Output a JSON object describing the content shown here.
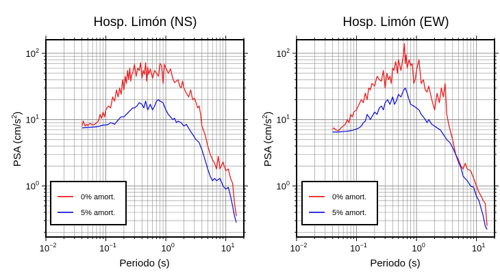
{
  "chart_data": [
    {
      "type": "line",
      "title": "Hosp. Limón (NS)",
      "xlabel": "Periodo (s)",
      "ylabel_main": "PSA (cm/s",
      "ylabel_sup": "2",
      "ylabel_close": ")",
      "xscale": "log",
      "yscale": "log",
      "xlim": [
        0.01,
        20
      ],
      "ylim": [
        0.17,
        160
      ],
      "grid": true,
      "legend_position": "bottom-left",
      "x_tick_labels": [
        {
          "value": 0.01,
          "base": "10",
          "exp": "−2"
        },
        {
          "value": 0.1,
          "base": "10",
          "exp": "−1"
        },
        {
          "value": 1,
          "base": "10",
          "exp": "0"
        },
        {
          "value": 10,
          "base": "10",
          "exp": "1"
        }
      ],
      "y_tick_labels": [
        {
          "value": 1,
          "base": "10",
          "exp": "0"
        },
        {
          "value": 10,
          "base": "10",
          "exp": "1"
        },
        {
          "value": 100,
          "base": "10",
          "exp": "2"
        }
      ],
      "series": [
        {
          "name": "0% amort.",
          "color": "#ee1c1c",
          "x": [
            0.04,
            0.042,
            0.045,
            0.048,
            0.05,
            0.055,
            0.06,
            0.065,
            0.07,
            0.075,
            0.08,
            0.085,
            0.09,
            0.095,
            0.1,
            0.11,
            0.12,
            0.13,
            0.14,
            0.15,
            0.16,
            0.17,
            0.18,
            0.19,
            0.2,
            0.21,
            0.22,
            0.23,
            0.24,
            0.25,
            0.26,
            0.27,
            0.28,
            0.3,
            0.32,
            0.34,
            0.36,
            0.38,
            0.4,
            0.42,
            0.44,
            0.46,
            0.48,
            0.5,
            0.52,
            0.55,
            0.6,
            0.65,
            0.7,
            0.75,
            0.8,
            0.85,
            0.9,
            0.95,
            1.0,
            1.05,
            1.1,
            1.2,
            1.3,
            1.4,
            1.5,
            1.6,
            1.7,
            1.8,
            1.9,
            2.0,
            2.2,
            2.4,
            2.6,
            2.8,
            3.0,
            3.2,
            3.4,
            3.6,
            3.8,
            4.0,
            4.5,
            5.0,
            5.5,
            6.0,
            6.5,
            7.0,
            7.5,
            8.0,
            9.0,
            10,
            11,
            12,
            13,
            14,
            15
          ],
          "y": [
            8,
            9.5,
            8,
            8.5,
            8.2,
            8.8,
            8.3,
            8.5,
            9,
            9.5,
            12,
            10.5,
            13,
            11,
            14,
            16,
            15,
            22,
            19,
            28,
            22,
            30,
            24,
            40,
            28,
            45,
            35,
            55,
            40,
            60,
            38,
            48,
            50,
            68,
            45,
            60,
            55,
            72,
            42,
            55,
            48,
            72,
            38,
            62,
            48,
            58,
            42,
            55,
            50,
            45,
            70,
            65,
            35,
            68,
            60,
            55,
            50,
            58,
            42,
            36,
            38,
            40,
            32,
            30,
            38,
            30,
            25,
            22,
            28,
            20,
            21,
            18,
            15,
            16,
            12,
            8,
            6,
            4,
            3,
            2.5,
            2.2,
            1.8,
            2.8,
            1.8,
            2.3,
            1.7,
            1.8,
            1.3,
            1.1,
            0.55,
            0.35
          ]
        },
        {
          "name": "5% amort.",
          "color": "#1616d6",
          "x": [
            0.04,
            0.05,
            0.06,
            0.07,
            0.08,
            0.09,
            0.1,
            0.11,
            0.12,
            0.13,
            0.14,
            0.15,
            0.16,
            0.17,
            0.18,
            0.2,
            0.22,
            0.24,
            0.26,
            0.28,
            0.3,
            0.33,
            0.36,
            0.4,
            0.43,
            0.46,
            0.5,
            0.55,
            0.6,
            0.65,
            0.7,
            0.75,
            0.8,
            0.9,
            1.0,
            1.1,
            1.2,
            1.3,
            1.4,
            1.5,
            1.6,
            1.8,
            2.0,
            2.2,
            2.5,
            2.8,
            3.2,
            3.6,
            4.0,
            4.5,
            5.0,
            5.5,
            6.0,
            6.5,
            7.0,
            8.0,
            9.0,
            10,
            11,
            12,
            13,
            14,
            15
          ],
          "y": [
            7.5,
            7.6,
            7.7,
            7.8,
            8,
            8.3,
            8.3,
            8.5,
            9,
            8.8,
            8.5,
            9.2,
            9.8,
            10.5,
            11,
            11,
            12,
            13,
            14,
            15,
            15,
            16,
            18,
            17,
            15,
            19,
            14,
            17,
            14,
            16,
            19,
            20,
            19,
            18,
            14,
            12,
            11,
            10,
            10.5,
            9,
            9.5,
            9,
            8,
            8.5,
            7,
            6,
            5,
            4.5,
            3.5,
            2.5,
            1.8,
            1.4,
            1.2,
            1.3,
            1.2,
            1.3,
            1.0,
            0.9,
            0.95,
            0.7,
            0.5,
            0.35,
            0.28
          ]
        }
      ]
    },
    {
      "type": "line",
      "title": "Hosp. Limón (EW)",
      "xlabel": "Periodo (s)",
      "ylabel_main": "PSA (cm/s",
      "ylabel_sup": "2",
      "ylabel_close": ")",
      "xscale": "log",
      "yscale": "log",
      "xlim": [
        0.01,
        20
      ],
      "ylim": [
        0.17,
        160
      ],
      "grid": true,
      "legend_position": "bottom-left",
      "x_tick_labels": [
        {
          "value": 0.01,
          "base": "10",
          "exp": "−2"
        },
        {
          "value": 0.1,
          "base": "10",
          "exp": "−1"
        },
        {
          "value": 1,
          "base": "10",
          "exp": "0"
        },
        {
          "value": 10,
          "base": "10",
          "exp": "1"
        }
      ],
      "y_tick_labels": [
        {
          "value": 1,
          "base": "10",
          "exp": "0"
        },
        {
          "value": 10,
          "base": "10",
          "exp": "1"
        },
        {
          "value": 100,
          "base": "10",
          "exp": "2"
        }
      ],
      "series": [
        {
          "name": "0% amort.",
          "color": "#ee1c1c",
          "x": [
            0.04,
            0.042,
            0.045,
            0.05,
            0.055,
            0.06,
            0.065,
            0.07,
            0.075,
            0.08,
            0.085,
            0.09,
            0.1,
            0.11,
            0.12,
            0.13,
            0.14,
            0.15,
            0.16,
            0.17,
            0.18,
            0.2,
            0.22,
            0.24,
            0.26,
            0.28,
            0.3,
            0.32,
            0.34,
            0.36,
            0.38,
            0.4,
            0.42,
            0.45,
            0.48,
            0.5,
            0.55,
            0.6,
            0.63,
            0.65,
            0.67,
            0.7,
            0.75,
            0.8,
            0.85,
            0.9,
            0.95,
            1.0,
            1.1,
            1.2,
            1.3,
            1.4,
            1.5,
            1.6,
            1.8,
            2.0,
            2.2,
            2.4,
            2.6,
            2.8,
            3.0,
            3.2,
            3.5,
            4.0,
            4.5,
            5.0,
            5.5,
            6.0,
            6.5,
            7.0,
            8.0,
            9.0,
            10,
            11,
            12,
            13,
            14,
            15
          ],
          "y": [
            7.2,
            7.5,
            7,
            6.8,
            7.5,
            8,
            8.5,
            10,
            9,
            12,
            11,
            13,
            14,
            17,
            20,
            18,
            25,
            20,
            30,
            28,
            35,
            32,
            45,
            40,
            38,
            55,
            30,
            50,
            40,
            45,
            35,
            60,
            55,
            75,
            50,
            80,
            55,
            90,
            140,
            70,
            95,
            60,
            80,
            65,
            70,
            35,
            40,
            55,
            80,
            35,
            40,
            28,
            26,
            32,
            20,
            14,
            25,
            18,
            30,
            22,
            35,
            12,
            8,
            5,
            3,
            2.5,
            2,
            1.8,
            2.2,
            1.8,
            1.7,
            1.3,
            1.0,
            0.8,
            0.7,
            0.6,
            0.55,
            0.25
          ]
        },
        {
          "name": "5% amort.",
          "color": "#1616d6",
          "x": [
            0.04,
            0.05,
            0.06,
            0.07,
            0.08,
            0.09,
            0.1,
            0.11,
            0.12,
            0.13,
            0.14,
            0.15,
            0.16,
            0.17,
            0.18,
            0.2,
            0.22,
            0.24,
            0.26,
            0.28,
            0.3,
            0.33,
            0.36,
            0.4,
            0.43,
            0.46,
            0.5,
            0.55,
            0.6,
            0.65,
            0.7,
            0.75,
            0.8,
            0.9,
            1.0,
            1.1,
            1.2,
            1.3,
            1.4,
            1.5,
            1.6,
            1.8,
            2.0,
            2.2,
            2.5,
            2.8,
            3.2,
            3.6,
            4.0,
            4.5,
            5.0,
            5.5,
            6.0,
            7.0,
            8.0,
            9.0,
            10,
            11,
            12,
            13,
            14,
            15
          ],
          "y": [
            6.5,
            6.5,
            6.6,
            6.7,
            6.8,
            7,
            7.2,
            7.5,
            8,
            9,
            9.5,
            12,
            11,
            10,
            11,
            13,
            12,
            15,
            16,
            14,
            18,
            20,
            17,
            22,
            17,
            19,
            24,
            22,
            27,
            30,
            25,
            20,
            17,
            16,
            15,
            14,
            12,
            11,
            10,
            9,
            10,
            8.5,
            8,
            7.5,
            7,
            6,
            5,
            4.5,
            3.8,
            3,
            2.3,
            1.9,
            1.4,
            1.2,
            1.0,
            0.95,
            0.7,
            0.6,
            0.45,
            0.35,
            0.25,
            0.22
          ]
        }
      ]
    }
  ]
}
